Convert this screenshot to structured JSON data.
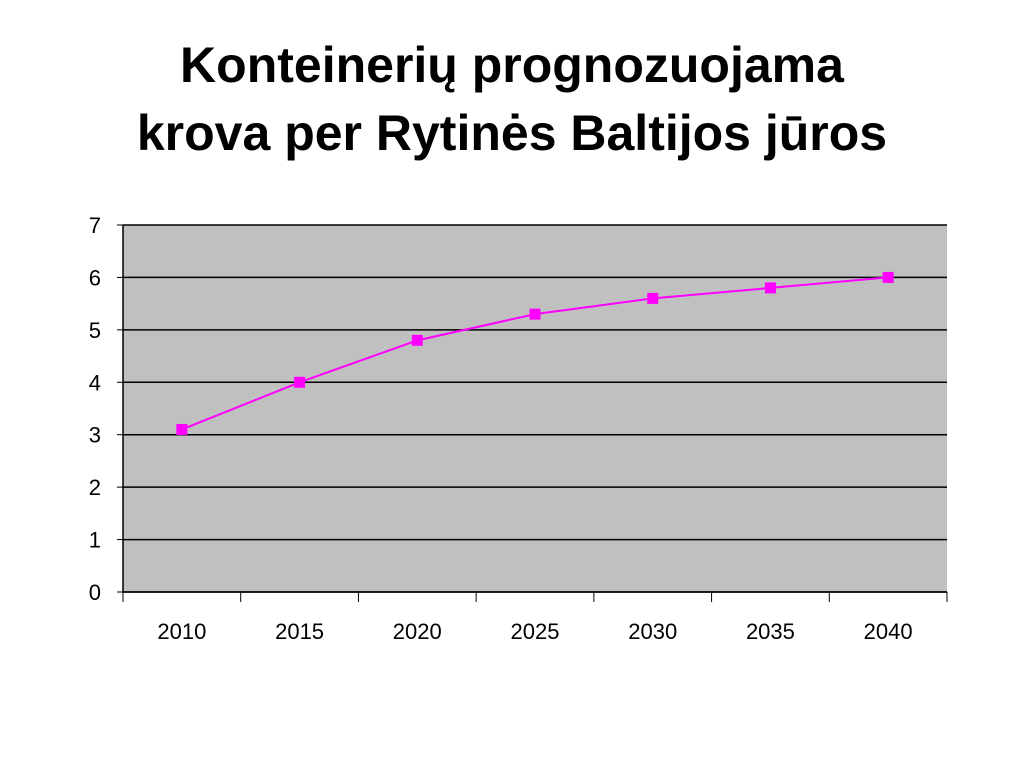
{
  "chart_data": {
    "type": "line",
    "title": [
      "Konteinerių prognozuojama",
      "krova per Rytinės Baltijos jūros"
    ],
    "categories": [
      "2010",
      "2015",
      "2020",
      "2025",
      "2030",
      "2035",
      "2040"
    ],
    "series": [
      {
        "color": "#ff00ff",
        "values": [
          3.1,
          4.0,
          4.8,
          5.3,
          5.6,
          5.8,
          6.0
        ]
      }
    ],
    "ylim": [
      0,
      7
    ],
    "yticks": [
      0,
      1,
      2,
      3,
      4,
      5,
      6,
      7
    ],
    "grid": true,
    "plot_background": "#c0c0c0"
  }
}
